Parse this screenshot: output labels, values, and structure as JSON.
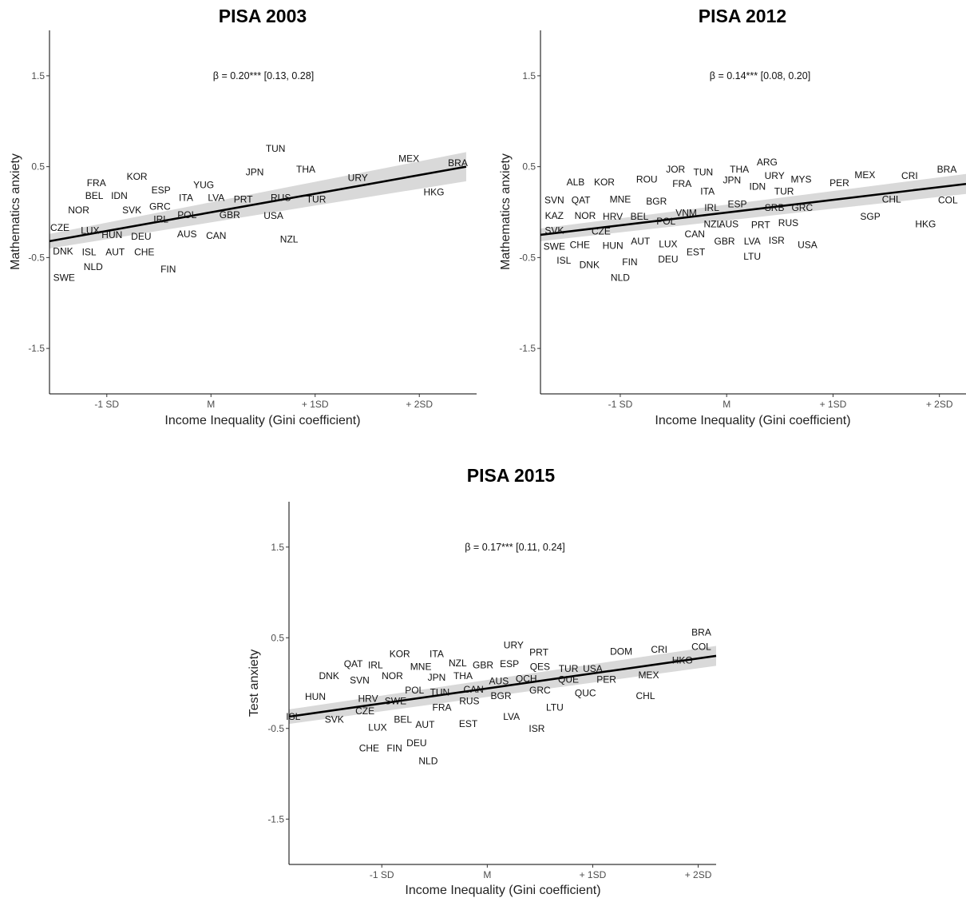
{
  "chart_data": [
    {
      "type": "scatter",
      "title": "PISA 2003",
      "xlabel": "Income Inequality (Gini coefficient)",
      "ylabel": "Mathematics anxiety",
      "annotation": "β = 0.20*** [0.13, 0.28]",
      "xlim": [
        -1.55,
        2.55
      ],
      "ylim": [
        -2.0,
        2.0
      ],
      "x_ticks": [
        {
          "v": -1,
          "label": "-1 SD"
        },
        {
          "v": 0,
          "label": "M"
        },
        {
          "v": 1,
          "label": "+ 1SD"
        },
        {
          "v": 2,
          "label": "+ 2SD"
        }
      ],
      "y_ticks": [
        {
          "v": 1.5,
          "label": "1.5"
        },
        {
          "v": 0.5,
          "label": "0.5"
        },
        {
          "v": -0.5,
          "label": "-0.5"
        },
        {
          "v": -1.5,
          "label": "-1.5"
        }
      ],
      "fit": {
        "x": [
          -1.55,
          2.45
        ],
        "y": [
          -0.32,
          0.5
        ],
        "lo": [
          -0.4,
          0.34
        ],
        "hi": [
          -0.24,
          0.66
        ]
      },
      "points": [
        {
          "label": "TUN",
          "x": 0.62,
          "y": 0.7
        },
        {
          "label": "MEX",
          "x": 1.9,
          "y": 0.59
        },
        {
          "label": "BRA",
          "x": 2.37,
          "y": 0.54
        },
        {
          "label": "JPN",
          "x": 0.42,
          "y": 0.44
        },
        {
          "label": "THA",
          "x": 0.91,
          "y": 0.47
        },
        {
          "label": "URY",
          "x": 1.41,
          "y": 0.38
        },
        {
          "label": "KOR",
          "x": -0.71,
          "y": 0.39
        },
        {
          "label": "FRA",
          "x": -1.1,
          "y": 0.32
        },
        {
          "label": "YUG",
          "x": -0.07,
          "y": 0.3
        },
        {
          "label": "ESP",
          "x": -0.48,
          "y": 0.24
        },
        {
          "label": "HKG",
          "x": 2.14,
          "y": 0.22
        },
        {
          "label": "BEL",
          "x": -1.12,
          "y": 0.18
        },
        {
          "label": "IDN",
          "x": -0.88,
          "y": 0.18
        },
        {
          "label": "ITA",
          "x": -0.24,
          "y": 0.16
        },
        {
          "label": "LVA",
          "x": 0.05,
          "y": 0.16
        },
        {
          "label": "RUS",
          "x": 0.67,
          "y": 0.16
        },
        {
          "label": "PRT",
          "x": 0.31,
          "y": 0.14
        },
        {
          "label": "TUR",
          "x": 1.01,
          "y": 0.14
        },
        {
          "label": "GRC",
          "x": -0.49,
          "y": 0.06
        },
        {
          "label": "NOR",
          "x": -1.27,
          "y": 0.02
        },
        {
          "label": "SVK",
          "x": -0.76,
          "y": 0.02
        },
        {
          "label": "POL",
          "x": -0.23,
          "y": -0.03
        },
        {
          "label": "GBR",
          "x": 0.18,
          "y": -0.03
        },
        {
          "label": "USA",
          "x": 0.6,
          "y": -0.04
        },
        {
          "label": "IRL",
          "x": -0.48,
          "y": -0.08
        },
        {
          "label": "CZE",
          "x": -1.45,
          "y": -0.17
        },
        {
          "label": "LUX",
          "x": -1.16,
          "y": -0.2
        },
        {
          "label": "HUN",
          "x": -0.95,
          "y": -0.25
        },
        {
          "label": "DEU",
          "x": -0.67,
          "y": -0.27
        },
        {
          "label": "AUS",
          "x": -0.23,
          "y": -0.24
        },
        {
          "label": "CAN",
          "x": 0.05,
          "y": -0.26
        },
        {
          "label": "NZL",
          "x": 0.75,
          "y": -0.3
        },
        {
          "label": "DNK",
          "x": -1.42,
          "y": -0.43
        },
        {
          "label": "ISL",
          "x": -1.17,
          "y": -0.44
        },
        {
          "label": "AUT",
          "x": -0.92,
          "y": -0.44
        },
        {
          "label": "CHE",
          "x": -0.64,
          "y": -0.44
        },
        {
          "label": "NLD",
          "x": -1.13,
          "y": -0.6
        },
        {
          "label": "FIN",
          "x": -0.41,
          "y": -0.63
        },
        {
          "label": "SWE",
          "x": -1.41,
          "y": -0.72
        }
      ]
    },
    {
      "type": "scatter",
      "title": "PISA 2012",
      "xlabel": "Income Inequality (Gini coefficient)",
      "ylabel": "Mathematics anxiety",
      "annotation": "β = 0.14*** [0.08, 0.20]",
      "xlim": [
        -1.75,
        2.25
      ],
      "ylim": [
        -2.0,
        2.0
      ],
      "x_ticks": [
        {
          "v": -1,
          "label": "-1 SD"
        },
        {
          "v": 0,
          "label": "M"
        },
        {
          "v": 1,
          "label": "+ 1SD"
        },
        {
          "v": 2,
          "label": "+ 2SD"
        }
      ],
      "y_ticks": [
        {
          "v": 1.5,
          "label": "1.5"
        },
        {
          "v": 0.5,
          "label": "0.5"
        },
        {
          "v": -0.5,
          "label": "-0.5"
        },
        {
          "v": -1.5,
          "label": "-1.5"
        }
      ],
      "fit": {
        "x": [
          -1.75,
          2.25
        ],
        "y": [
          -0.25,
          0.31
        ],
        "lo": [
          -0.32,
          0.2
        ],
        "hi": [
          -0.18,
          0.42
        ]
      },
      "points": [
        {
          "label": "ARG",
          "x": 0.38,
          "y": 0.55
        },
        {
          "label": "JOR",
          "x": -0.48,
          "y": 0.47
        },
        {
          "label": "THA",
          "x": 0.12,
          "y": 0.47
        },
        {
          "label": "TUN",
          "x": -0.22,
          "y": 0.44
        },
        {
          "label": "BRA",
          "x": 2.07,
          "y": 0.47
        },
        {
          "label": "URY",
          "x": 0.45,
          "y": 0.4
        },
        {
          "label": "MEX",
          "x": 1.3,
          "y": 0.41
        },
        {
          "label": "CRI",
          "x": 1.72,
          "y": 0.4
        },
        {
          "label": "ROU",
          "x": -0.75,
          "y": 0.36
        },
        {
          "label": "JPN",
          "x": 0.05,
          "y": 0.35
        },
        {
          "label": "MYS",
          "x": 0.7,
          "y": 0.36
        },
        {
          "label": "ALB",
          "x": -1.42,
          "y": 0.33
        },
        {
          "label": "KOR",
          "x": -1.15,
          "y": 0.33
        },
        {
          "label": "FRA",
          "x": -0.42,
          "y": 0.31
        },
        {
          "label": "PER",
          "x": 1.06,
          "y": 0.32
        },
        {
          "label": "IDN",
          "x": 0.29,
          "y": 0.28
        },
        {
          "label": "ITA",
          "x": -0.18,
          "y": 0.23
        },
        {
          "label": "TUR",
          "x": 0.54,
          "y": 0.23
        },
        {
          "label": "CHL",
          "x": 1.55,
          "y": 0.14
        },
        {
          "label": "SVN",
          "x": -1.62,
          "y": 0.13
        },
        {
          "label": "QAT",
          "x": -1.37,
          "y": 0.13
        },
        {
          "label": "MNE",
          "x": -1.0,
          "y": 0.14
        },
        {
          "label": "BGR",
          "x": -0.66,
          "y": 0.12
        },
        {
          "label": "COL",
          "x": 2.08,
          "y": 0.13
        },
        {
          "label": "ESP",
          "x": 0.1,
          "y": 0.09
        },
        {
          "label": "SRB",
          "x": 0.45,
          "y": 0.05
        },
        {
          "label": "GRC",
          "x": 0.71,
          "y": 0.05
        },
        {
          "label": "IRL",
          "x": -0.14,
          "y": 0.05
        },
        {
          "label": "VNM",
          "x": -0.38,
          "y": -0.01
        },
        {
          "label": "KAZ",
          "x": -1.62,
          "y": -0.04
        },
        {
          "label": "NOR",
          "x": -1.33,
          "y": -0.04
        },
        {
          "label": "HRV",
          "x": -1.07,
          "y": -0.05
        },
        {
          "label": "BEL",
          "x": -0.82,
          "y": -0.05
        },
        {
          "label": "POL",
          "x": -0.57,
          "y": -0.1
        },
        {
          "label": "SGP",
          "x": 1.35,
          "y": -0.05
        },
        {
          "label": "NZL",
          "x": -0.13,
          "y": -0.13
        },
        {
          "label": "AUS",
          "x": 0.02,
          "y": -0.13
        },
        {
          "label": "PRT",
          "x": 0.32,
          "y": -0.14
        },
        {
          "label": "RUS",
          "x": 0.58,
          "y": -0.12
        },
        {
          "label": "HKG",
          "x": 1.87,
          "y": -0.13
        },
        {
          "label": "SVK",
          "x": -1.62,
          "y": -0.2
        },
        {
          "label": "CZE",
          "x": -1.18,
          "y": -0.21
        },
        {
          "label": "CAN",
          "x": -0.3,
          "y": -0.24
        },
        {
          "label": "AUT",
          "x": -0.81,
          "y": -0.32
        },
        {
          "label": "LUX",
          "x": -0.55,
          "y": -0.35
        },
        {
          "label": "GBR",
          "x": -0.02,
          "y": -0.32
        },
        {
          "label": "LVA",
          "x": 0.24,
          "y": -0.32
        },
        {
          "label": "ISR",
          "x": 0.47,
          "y": -0.31
        },
        {
          "label": "USA",
          "x": 0.76,
          "y": -0.36
        },
        {
          "label": "SWE",
          "x": -1.62,
          "y": -0.38
        },
        {
          "label": "CHE",
          "x": -1.38,
          "y": -0.36
        },
        {
          "label": "HUN",
          "x": -1.07,
          "y": -0.37
        },
        {
          "label": "EST",
          "x": -0.29,
          "y": -0.44
        },
        {
          "label": "ISL",
          "x": -1.53,
          "y": -0.53
        },
        {
          "label": "DEU",
          "x": -0.55,
          "y": -0.52
        },
        {
          "label": "FIN",
          "x": -0.91,
          "y": -0.55
        },
        {
          "label": "LTU",
          "x": 0.24,
          "y": -0.49
        },
        {
          "label": "DNK",
          "x": -1.29,
          "y": -0.58
        },
        {
          "label": "NLD",
          "x": -1.0,
          "y": -0.72
        }
      ]
    },
    {
      "type": "scatter",
      "title": "PISA 2015",
      "xlabel": "Income Inequality (Gini coefficient)",
      "ylabel": "Test anxiety",
      "annotation": "β = 0.17*** [0.11, 0.24]",
      "xlim": [
        -1.88,
        2.17
      ],
      "ylim": [
        -2.0,
        2.0
      ],
      "x_ticks": [
        {
          "v": -1,
          "label": "-1 SD"
        },
        {
          "v": 0,
          "label": "M"
        },
        {
          "v": 1,
          "label": "+ 1SD"
        },
        {
          "v": 2,
          "label": "+ 2SD"
        }
      ],
      "y_ticks": [
        {
          "v": 1.5,
          "label": "1.5"
        },
        {
          "v": 0.5,
          "label": "0.5"
        },
        {
          "v": -0.5,
          "label": "-0.5"
        },
        {
          "v": -1.5,
          "label": "-1.5"
        }
      ],
      "fit": {
        "x": [
          -1.88,
          2.17
        ],
        "y": [
          -0.37,
          0.3
        ],
        "lo": [
          -0.45,
          0.19
        ],
        "hi": [
          -0.29,
          0.41
        ]
      },
      "points": [
        {
          "label": "BRA",
          "x": 2.03,
          "y": 0.56
        },
        {
          "label": "URY",
          "x": 0.25,
          "y": 0.42
        },
        {
          "label": "COL",
          "x": 2.03,
          "y": 0.4
        },
        {
          "label": "PRT",
          "x": 0.49,
          "y": 0.34
        },
        {
          "label": "DOM",
          "x": 1.27,
          "y": 0.35
        },
        {
          "label": "CRI",
          "x": 1.63,
          "y": 0.37
        },
        {
          "label": "KOR",
          "x": -0.83,
          "y": 0.32
        },
        {
          "label": "ITA",
          "x": -0.48,
          "y": 0.32
        },
        {
          "label": "HKG",
          "x": 1.85,
          "y": 0.25
        },
        {
          "label": "NZL",
          "x": -0.28,
          "y": 0.22
        },
        {
          "label": "GBR",
          "x": -0.04,
          "y": 0.2
        },
        {
          "label": "ESP",
          "x": 0.21,
          "y": 0.21
        },
        {
          "label": "QAT",
          "x": -1.27,
          "y": 0.21
        },
        {
          "label": "IRL",
          "x": -1.06,
          "y": 0.2
        },
        {
          "label": "MNE",
          "x": -0.63,
          "y": 0.18
        },
        {
          "label": "QES",
          "x": 0.5,
          "y": 0.18
        },
        {
          "label": "TUR",
          "x": 0.77,
          "y": 0.16
        },
        {
          "label": "USA",
          "x": 1.0,
          "y": 0.16
        },
        {
          "label": "DNK",
          "x": -1.5,
          "y": 0.08
        },
        {
          "label": "NOR",
          "x": -0.9,
          "y": 0.08
        },
        {
          "label": "JPN",
          "x": -0.48,
          "y": 0.06
        },
        {
          "label": "THA",
          "x": -0.23,
          "y": 0.08
        },
        {
          "label": "QCH",
          "x": 0.37,
          "y": 0.05
        },
        {
          "label": "QUE",
          "x": 0.77,
          "y": 0.04
        },
        {
          "label": "PER",
          "x": 1.13,
          "y": 0.04
        },
        {
          "label": "MEX",
          "x": 1.53,
          "y": 0.09
        },
        {
          "label": "SVN",
          "x": -1.21,
          "y": 0.03
        },
        {
          "label": "AUS",
          "x": 0.11,
          "y": 0.02
        },
        {
          "label": "CAN",
          "x": -0.13,
          "y": -0.07
        },
        {
          "label": "POL",
          "x": -0.69,
          "y": -0.08
        },
        {
          "label": "TUN",
          "x": -0.45,
          "y": -0.1
        },
        {
          "label": "GRC",
          "x": 0.5,
          "y": -0.08
        },
        {
          "label": "QUC",
          "x": 0.93,
          "y": -0.11
        },
        {
          "label": "CHL",
          "x": 1.5,
          "y": -0.14
        },
        {
          "label": "HUN",
          "x": -1.63,
          "y": -0.15
        },
        {
          "label": "HRV",
          "x": -1.13,
          "y": -0.17
        },
        {
          "label": "BGR",
          "x": 0.13,
          "y": -0.14
        },
        {
          "label": "SWE",
          "x": -0.87,
          "y": -0.2
        },
        {
          "label": "RUS",
          "x": -0.17,
          "y": -0.2
        },
        {
          "label": "FRA",
          "x": -0.43,
          "y": -0.27
        },
        {
          "label": "LTU",
          "x": 0.64,
          "y": -0.27
        },
        {
          "label": "CZE",
          "x": -1.16,
          "y": -0.31
        },
        {
          "label": "ISL",
          "x": -1.84,
          "y": -0.37
        },
        {
          "label": "SVK",
          "x": -1.45,
          "y": -0.4
        },
        {
          "label": "BEL",
          "x": -0.8,
          "y": -0.4
        },
        {
          "label": "LVA",
          "x": 0.23,
          "y": -0.37
        },
        {
          "label": "LUX",
          "x": -1.04,
          "y": -0.49
        },
        {
          "label": "AUT",
          "x": -0.59,
          "y": -0.46
        },
        {
          "label": "EST",
          "x": -0.18,
          "y": -0.45
        },
        {
          "label": "ISR",
          "x": 0.47,
          "y": -0.5
        },
        {
          "label": "DEU",
          "x": -0.67,
          "y": -0.66
        },
        {
          "label": "CHE",
          "x": -1.12,
          "y": -0.72
        },
        {
          "label": "FIN",
          "x": -0.88,
          "y": -0.72
        },
        {
          "label": "NLD",
          "x": -0.56,
          "y": -0.86
        }
      ]
    }
  ]
}
